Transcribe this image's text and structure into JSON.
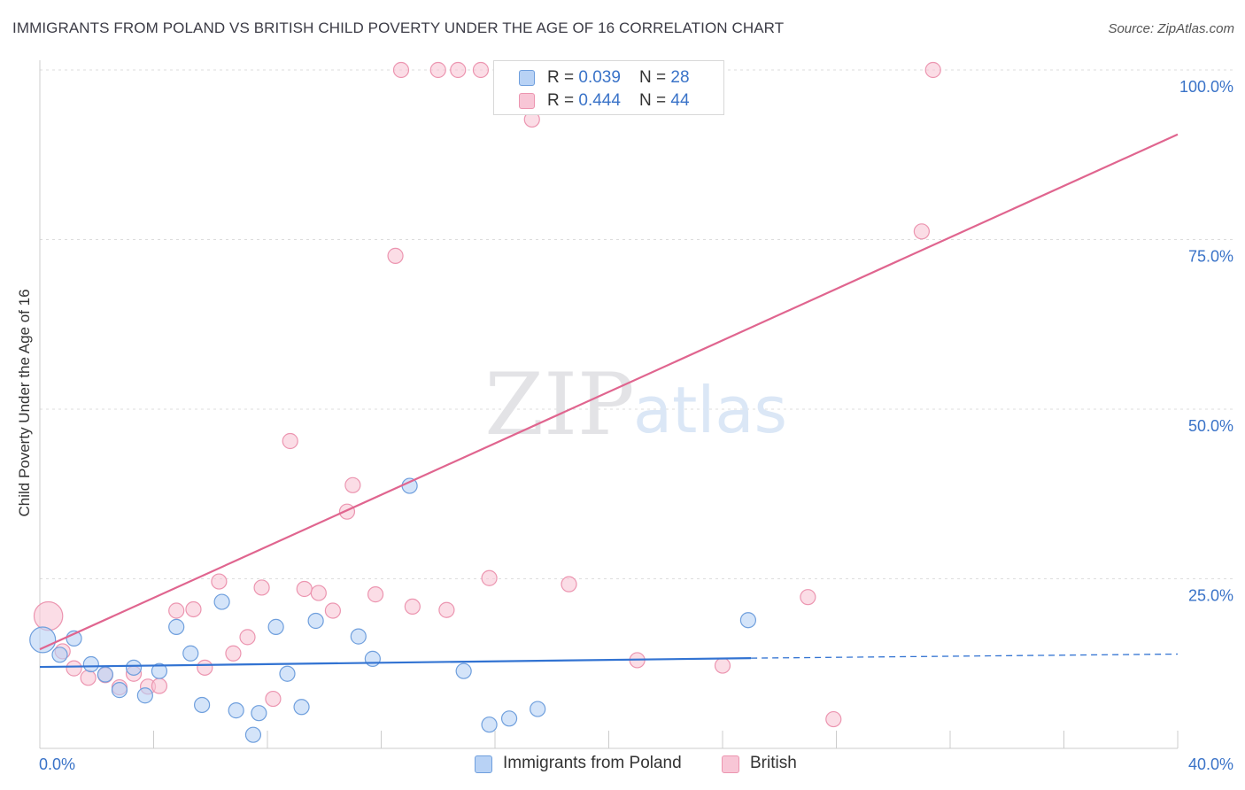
{
  "title": "IMMIGRANTS FROM POLAND VS BRITISH CHILD POVERTY UNDER THE AGE OF 16 CORRELATION CHART",
  "source": "Source: ZipAtlas.com",
  "watermark": {
    "zip": "ZIP",
    "atlas": "atlas"
  },
  "legend": {
    "rows": [
      {
        "r_label": "R = ",
        "r_value": "0.039",
        "n_label": "N = ",
        "n_value": "28"
      },
      {
        "r_label": "R = ",
        "r_value": "0.444",
        "n_label": "N = ",
        "n_value": "44"
      }
    ]
  },
  "bottom_legend": {
    "poland": "Immigrants from Poland",
    "british": "British"
  },
  "colors": {
    "poland_fill": "#b8d2f5",
    "poland_stroke": "#6f9fdd",
    "poland_line": "#3273d2",
    "british_fill": "#f8c6d6",
    "british_stroke": "#ec95b0",
    "british_line": "#e0658f",
    "axis_label": "#3a73c8",
    "grid": "#dddddd"
  },
  "chart_data": {
    "type": "scatter",
    "title": "IMMIGRANTS FROM POLAND VS BRITISH CHILD POVERTY UNDER THE AGE OF 16 CORRELATION CHART",
    "xlabel": "",
    "ylabel": "Child Poverty Under the Age of 16",
    "xlim": [
      0,
      40
    ],
    "ylim": [
      0,
      100
    ],
    "x_tick_labels": [
      "0.0%",
      "40.0%"
    ],
    "y_ticks": [
      25,
      50,
      75,
      100
    ],
    "y_tick_labels": [
      "25.0%",
      "50.0%",
      "75.0%",
      "100.0%"
    ],
    "grid": true,
    "legend_position": "top-center",
    "series": [
      {
        "name": "Immigrants from Poland",
        "r": 0.039,
        "n": 28,
        "points": [
          {
            "x": 0.1,
            "y": 16.0,
            "s": 1.7
          },
          {
            "x": 0.7,
            "y": 13.8,
            "s": 1
          },
          {
            "x": 1.2,
            "y": 16.2,
            "s": 1
          },
          {
            "x": 1.8,
            "y": 12.4,
            "s": 1
          },
          {
            "x": 2.3,
            "y": 10.9,
            "s": 1
          },
          {
            "x": 2.8,
            "y": 8.6,
            "s": 1
          },
          {
            "x": 3.3,
            "y": 11.9,
            "s": 1
          },
          {
            "x": 3.7,
            "y": 7.8,
            "s": 1
          },
          {
            "x": 4.2,
            "y": 11.4,
            "s": 1
          },
          {
            "x": 4.8,
            "y": 17.9,
            "s": 1
          },
          {
            "x": 5.3,
            "y": 14.0,
            "s": 1
          },
          {
            "x": 5.7,
            "y": 6.4,
            "s": 1
          },
          {
            "x": 6.4,
            "y": 21.6,
            "s": 1
          },
          {
            "x": 6.9,
            "y": 5.6,
            "s": 1
          },
          {
            "x": 7.5,
            "y": 2.0,
            "s": 1
          },
          {
            "x": 7.7,
            "y": 5.2,
            "s": 1
          },
          {
            "x": 8.3,
            "y": 17.9,
            "s": 1
          },
          {
            "x": 8.7,
            "y": 11.0,
            "s": 1
          },
          {
            "x": 9.2,
            "y": 6.1,
            "s": 1
          },
          {
            "x": 9.7,
            "y": 18.8,
            "s": 1
          },
          {
            "x": 11.2,
            "y": 16.5,
            "s": 1
          },
          {
            "x": 11.7,
            "y": 13.2,
            "s": 1
          },
          {
            "x": 13.0,
            "y": 38.7,
            "s": 1
          },
          {
            "x": 14.9,
            "y": 11.4,
            "s": 1
          },
          {
            "x": 15.8,
            "y": 3.5,
            "s": 1
          },
          {
            "x": 16.5,
            "y": 4.4,
            "s": 1
          },
          {
            "x": 17.5,
            "y": 5.8,
            "s": 1
          },
          {
            "x": 24.9,
            "y": 18.9,
            "s": 1
          }
        ],
        "trend": {
          "x0": 0,
          "y0": 12.0,
          "x1": 25.0,
          "y1": 13.3,
          "dashed_to": 40,
          "dashed_y": 13.9
        }
      },
      {
        "name": "British",
        "r": 0.444,
        "n": 44,
        "points": [
          {
            "x": 0.3,
            "y": 19.5,
            "s": 1.9
          },
          {
            "x": 0.8,
            "y": 14.3,
            "s": 1
          },
          {
            "x": 1.2,
            "y": 11.8,
            "s": 1
          },
          {
            "x": 1.7,
            "y": 10.4,
            "s": 1
          },
          {
            "x": 2.3,
            "y": 10.8,
            "s": 1
          },
          {
            "x": 2.8,
            "y": 9.0,
            "s": 1
          },
          {
            "x": 3.3,
            "y": 11.0,
            "s": 1
          },
          {
            "x": 3.8,
            "y": 9.1,
            "s": 1
          },
          {
            "x": 4.2,
            "y": 9.2,
            "s": 1
          },
          {
            "x": 4.8,
            "y": 20.3,
            "s": 1
          },
          {
            "x": 5.4,
            "y": 20.5,
            "s": 1
          },
          {
            "x": 5.8,
            "y": 11.9,
            "s": 1
          },
          {
            "x": 6.3,
            "y": 24.6,
            "s": 1
          },
          {
            "x": 6.8,
            "y": 14.0,
            "s": 1
          },
          {
            "x": 7.3,
            "y": 16.4,
            "s": 1
          },
          {
            "x": 7.8,
            "y": 23.7,
            "s": 1
          },
          {
            "x": 8.2,
            "y": 7.3,
            "s": 1
          },
          {
            "x": 8.8,
            "y": 45.3,
            "s": 1
          },
          {
            "x": 9.3,
            "y": 23.5,
            "s": 1
          },
          {
            "x": 9.8,
            "y": 22.9,
            "s": 1
          },
          {
            "x": 10.3,
            "y": 20.3,
            "s": 1
          },
          {
            "x": 10.8,
            "y": 34.9,
            "s": 1
          },
          {
            "x": 11.0,
            "y": 38.8,
            "s": 1
          },
          {
            "x": 11.8,
            "y": 22.7,
            "s": 1
          },
          {
            "x": 12.5,
            "y": 72.6,
            "s": 1
          },
          {
            "x": 12.7,
            "y": 100,
            "s": 1
          },
          {
            "x": 13.1,
            "y": 20.9,
            "s": 1
          },
          {
            "x": 14.0,
            "y": 100,
            "s": 1
          },
          {
            "x": 14.3,
            "y": 20.4,
            "s": 1
          },
          {
            "x": 14.7,
            "y": 100,
            "s": 1
          },
          {
            "x": 15.5,
            "y": 100,
            "s": 1
          },
          {
            "x": 15.8,
            "y": 25.1,
            "s": 1
          },
          {
            "x": 16.4,
            "y": 100,
            "s": 1
          },
          {
            "x": 17.2,
            "y": 100,
            "s": 1
          },
          {
            "x": 17.3,
            "y": 92.7,
            "s": 1
          },
          {
            "x": 18.6,
            "y": 24.2,
            "s": 1
          },
          {
            "x": 20.5,
            "y": 100,
            "s": 1
          },
          {
            "x": 21.0,
            "y": 13.0,
            "s": 1
          },
          {
            "x": 22.4,
            "y": 100,
            "s": 1
          },
          {
            "x": 24.0,
            "y": 12.2,
            "s": 1
          },
          {
            "x": 27.0,
            "y": 22.3,
            "s": 1
          },
          {
            "x": 27.9,
            "y": 4.3,
            "s": 1
          },
          {
            "x": 31.0,
            "y": 76.2,
            "s": 1
          },
          {
            "x": 31.4,
            "y": 100,
            "s": 1
          }
        ],
        "trend": {
          "x0": 0,
          "y0": 14.6,
          "x1": 40,
          "y1": 90.5
        }
      }
    ]
  }
}
